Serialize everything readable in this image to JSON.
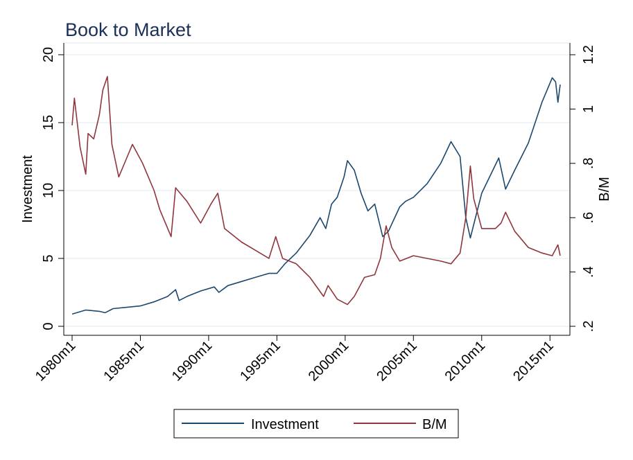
{
  "chart_data": {
    "type": "line",
    "title": "Book to Market",
    "xlabel": "",
    "ylabel_left": "Investment",
    "ylabel_right": "B/M",
    "x_ticks": [
      "1980m1",
      "1985m1",
      "1990m1",
      "1995m1",
      "2000m1",
      "2005m1",
      "2010m1",
      "2015m1"
    ],
    "x_range": [
      "1980m1",
      "2015m10"
    ],
    "y_left_ticks": [
      0,
      5,
      10,
      15,
      20
    ],
    "y_left_tick_labels": [
      "0",
      "5",
      "10",
      "15",
      "20"
    ],
    "y_left_range": [
      0,
      20
    ],
    "y_right_ticks": [
      0.2,
      0.4,
      0.6,
      0.8,
      1.0,
      1.2
    ],
    "y_right_tick_labels": [
      ".2",
      ".4",
      ".6",
      ".8",
      "1",
      "1.2"
    ],
    "y_right_range": [
      0.2,
      1.2
    ],
    "grid": true,
    "legend_position": "bottom",
    "series": [
      {
        "name": "Investment",
        "axis": "left",
        "color": "#1a476f",
        "points": [
          [
            "1980m1",
            0.9
          ],
          [
            "1981m1",
            1.2
          ],
          [
            "1982m1",
            1.1
          ],
          [
            "1982m6",
            1.0
          ],
          [
            "1983m1",
            1.3
          ],
          [
            "1984m1",
            1.4
          ],
          [
            "1985m1",
            1.5
          ],
          [
            "1986m1",
            1.8
          ],
          [
            "1987m1",
            2.2
          ],
          [
            "1987m8",
            2.7
          ],
          [
            "1987m11",
            1.9
          ],
          [
            "1988m6",
            2.2
          ],
          [
            "1989m6",
            2.6
          ],
          [
            "1990m6",
            2.9
          ],
          [
            "1990m10",
            2.5
          ],
          [
            "1991m6",
            3.0
          ],
          [
            "1992m6",
            3.3
          ],
          [
            "1993m6",
            3.6
          ],
          [
            "1994m6",
            3.9
          ],
          [
            "1995m1",
            3.9
          ],
          [
            "1995m8",
            4.6
          ],
          [
            "1996m6",
            5.4
          ],
          [
            "1997m6",
            6.7
          ],
          [
            "1998m3",
            8.0
          ],
          [
            "1998m8",
            7.2
          ],
          [
            "1999m1",
            9.0
          ],
          [
            "1999m6",
            9.5
          ],
          [
            "1999m12",
            11.0
          ],
          [
            "2000m3",
            12.2
          ],
          [
            "2000m9",
            11.5
          ],
          [
            "2001m3",
            9.8
          ],
          [
            "2001m9",
            8.5
          ],
          [
            "2002m3",
            9.0
          ],
          [
            "2002m10",
            6.6
          ],
          [
            "2003m3",
            7.0
          ],
          [
            "2004m1",
            8.8
          ],
          [
            "2004m6",
            9.2
          ],
          [
            "2005m1",
            9.5
          ],
          [
            "2006m1",
            10.5
          ],
          [
            "2007m1",
            12.0
          ],
          [
            "2007m10",
            13.6
          ],
          [
            "2008m6",
            12.5
          ],
          [
            "2008m11",
            8.0
          ],
          [
            "2009m3",
            6.5
          ],
          [
            "2009m6",
            7.5
          ],
          [
            "2010m1",
            9.8
          ],
          [
            "2011m4",
            12.4
          ],
          [
            "2011m10",
            10.1
          ],
          [
            "2012m6",
            11.5
          ],
          [
            "2013m6",
            13.5
          ],
          [
            "2014m6",
            16.5
          ],
          [
            "2015m3",
            18.3
          ],
          [
            "2015m6",
            18.0
          ],
          [
            "2015m8",
            16.5
          ],
          [
            "2015m10",
            17.8
          ]
        ]
      },
      {
        "name": "B/M",
        "axis": "right",
        "color": "#90353b",
        "points": [
          [
            "1980m1",
            0.94
          ],
          [
            "1980m3",
            1.04
          ],
          [
            "1980m8",
            0.86
          ],
          [
            "1981m1",
            0.76
          ],
          [
            "1981m3",
            0.91
          ],
          [
            "1981m8",
            0.89
          ],
          [
            "1982m1",
            0.98
          ],
          [
            "1982m4",
            1.07
          ],
          [
            "1982m8",
            1.12
          ],
          [
            "1982m12",
            0.87
          ],
          [
            "1983m6",
            0.75
          ],
          [
            "1984m1",
            0.82
          ],
          [
            "1984m6",
            0.87
          ],
          [
            "1985m3",
            0.8
          ],
          [
            "1986m1",
            0.7
          ],
          [
            "1986m6",
            0.63
          ],
          [
            "1987m4",
            0.53
          ],
          [
            "1987m8",
            0.71
          ],
          [
            "1988m6",
            0.66
          ],
          [
            "1989m6",
            0.58
          ],
          [
            "1990m3",
            0.65
          ],
          [
            "1990m9",
            0.69
          ],
          [
            "1991m3",
            0.56
          ],
          [
            "1992m6",
            0.51
          ],
          [
            "1993m6",
            0.48
          ],
          [
            "1994m6",
            0.45
          ],
          [
            "1994m12",
            0.53
          ],
          [
            "1995m6",
            0.45
          ],
          [
            "1996m6",
            0.43
          ],
          [
            "1997m6",
            0.38
          ],
          [
            "1998m6",
            0.31
          ],
          [
            "1998m10",
            0.35
          ],
          [
            "1999m6",
            0.3
          ],
          [
            "2000m3",
            0.28
          ],
          [
            "2000m9",
            0.31
          ],
          [
            "2001m6",
            0.38
          ],
          [
            "2002m3",
            0.39
          ],
          [
            "2002m8",
            0.45
          ],
          [
            "2003m1",
            0.57
          ],
          [
            "2003m6",
            0.49
          ],
          [
            "2004m1",
            0.44
          ],
          [
            "2005m1",
            0.46
          ],
          [
            "2006m1",
            0.45
          ],
          [
            "2007m1",
            0.44
          ],
          [
            "2007m10",
            0.43
          ],
          [
            "2008m6",
            0.47
          ],
          [
            "2008m11",
            0.6
          ],
          [
            "2009m3",
            0.79
          ],
          [
            "2009m6",
            0.67
          ],
          [
            "2010m1",
            0.56
          ],
          [
            "2011m1",
            0.56
          ],
          [
            "2011m6",
            0.58
          ],
          [
            "2011m10",
            0.62
          ],
          [
            "2012m6",
            0.55
          ],
          [
            "2013m6",
            0.49
          ],
          [
            "2014m6",
            0.47
          ],
          [
            "2015m3",
            0.46
          ],
          [
            "2015m8",
            0.5
          ],
          [
            "2015m10",
            0.46
          ]
        ]
      }
    ]
  }
}
